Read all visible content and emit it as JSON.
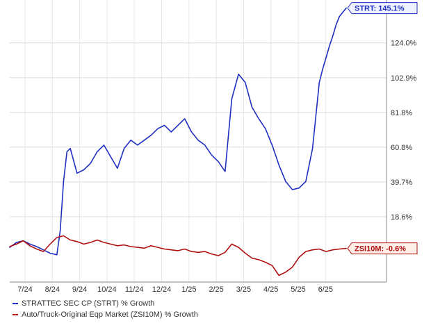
{
  "chart_data": {
    "type": "line",
    "x_ticks": [
      "7/24",
      "8/24",
      "9/24",
      "10/24",
      "11/24",
      "12/24",
      "1/25",
      "2/25",
      "3/25",
      "4/25",
      "5/25",
      "6/25"
    ],
    "y_ticks": [
      "18.6%",
      "39.7%",
      "60.8%",
      "81.8%",
      "102.9%",
      "124.0%"
    ],
    "y_tick_values": [
      18.6,
      39.7,
      60.8,
      81.8,
      102.9,
      124.0
    ],
    "ylim": [
      -21,
      150
    ],
    "grid": true,
    "legend_position": "bottom-left",
    "series": [
      {
        "name": "STRATTEC SEC CP (STRT) % Growth",
        "color": "#1f2fbf",
        "end_label": "STRT: 145.1%",
        "x": [
          0.0,
          0.02,
          0.04,
          0.06,
          0.08,
          0.1,
          0.12,
          0.14,
          0.15,
          0.16,
          0.17,
          0.18,
          0.2,
          0.22,
          0.24,
          0.26,
          0.28,
          0.3,
          0.32,
          0.34,
          0.36,
          0.38,
          0.4,
          0.42,
          0.44,
          0.46,
          0.48,
          0.5,
          0.52,
          0.54,
          0.56,
          0.58,
          0.6,
          0.62,
          0.64,
          0.66,
          0.68,
          0.7,
          0.72,
          0.74,
          0.76,
          0.78,
          0.8,
          0.82,
          0.84,
          0.86,
          0.88,
          0.9,
          0.92,
          0.93,
          0.94,
          0.95,
          0.96,
          0.97,
          0.98,
          1.0
        ],
        "values": [
          0.0,
          3.0,
          4.0,
          2.0,
          0.5,
          -1.5,
          -3.5,
          -4.5,
          10.0,
          40.0,
          58.0,
          60.0,
          45.0,
          47.0,
          51.0,
          58.0,
          62.0,
          55.0,
          48.0,
          60.0,
          65.0,
          62.0,
          65.0,
          68.0,
          72.0,
          74.0,
          70.0,
          74.0,
          78.0,
          70.0,
          65.0,
          62.0,
          56.0,
          52.0,
          46.0,
          90.0,
          105.0,
          100.0,
          85.0,
          78.0,
          72.0,
          62.0,
          50.0,
          40.0,
          35.0,
          36.0,
          40.0,
          60.0,
          100.0,
          108.0,
          115.0,
          122.0,
          128.0,
          135.0,
          140.0,
          145.1
        ]
      },
      {
        "name": "Auto/Truck-Original Eqp Market (ZSI10M) % Growth",
        "color": "#b01010",
        "end_label": "ZSI10M: -0.6%",
        "x": [
          0.0,
          0.02,
          0.04,
          0.06,
          0.08,
          0.1,
          0.12,
          0.14,
          0.16,
          0.18,
          0.2,
          0.22,
          0.24,
          0.26,
          0.28,
          0.3,
          0.32,
          0.34,
          0.36,
          0.38,
          0.4,
          0.42,
          0.44,
          0.46,
          0.48,
          0.5,
          0.52,
          0.54,
          0.56,
          0.58,
          0.6,
          0.62,
          0.64,
          0.66,
          0.68,
          0.7,
          0.72,
          0.74,
          0.76,
          0.78,
          0.8,
          0.82,
          0.84,
          0.86,
          0.88,
          0.9,
          0.92,
          0.94,
          0.96,
          0.98,
          1.0
        ],
        "values": [
          0.5,
          2.0,
          4.0,
          1.0,
          -1.0,
          -2.5,
          2.0,
          6.0,
          7.0,
          4.5,
          3.5,
          2.0,
          3.0,
          4.5,
          3.0,
          2.0,
          1.0,
          1.5,
          0.5,
          0.0,
          -0.5,
          1.0,
          0.0,
          -1.0,
          -1.5,
          -2.0,
          -1.0,
          -2.5,
          -3.0,
          -2.5,
          -4.0,
          -5.0,
          -3.0,
          2.0,
          0.0,
          -3.5,
          -6.5,
          -7.5,
          -9.0,
          -11.0,
          -17.0,
          -15.0,
          -12.0,
          -6.0,
          -2.5,
          -1.5,
          -1.0,
          -2.5,
          -1.5,
          -1.0,
          -0.6
        ]
      }
    ]
  }
}
